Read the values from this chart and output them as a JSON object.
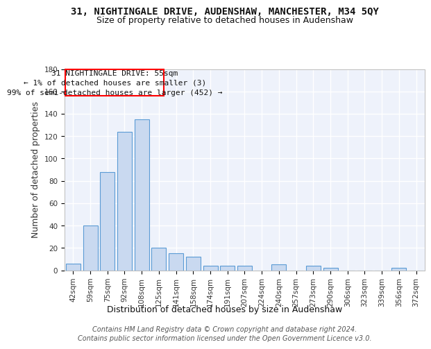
{
  "title_line1": "31, NIGHTINGALE DRIVE, AUDENSHAW, MANCHESTER, M34 5QY",
  "title_line2": "Size of property relative to detached houses in Audenshaw",
  "xlabel": "Distribution of detached houses by size in Audenshaw",
  "ylabel": "Number of detached properties",
  "categories": [
    "42sqm",
    "59sqm",
    "75sqm",
    "92sqm",
    "108sqm",
    "125sqm",
    "141sqm",
    "158sqm",
    "174sqm",
    "191sqm",
    "207sqm",
    "224sqm",
    "240sqm",
    "257sqm",
    "273sqm",
    "290sqm",
    "306sqm",
    "323sqm",
    "339sqm",
    "356sqm",
    "372sqm"
  ],
  "values": [
    6,
    40,
    88,
    124,
    135,
    20,
    15,
    12,
    4,
    4,
    4,
    0,
    5,
    0,
    4,
    2,
    0,
    0,
    0,
    2,
    0
  ],
  "bar_color": "#c9d9f0",
  "bar_edge_color": "#5b9bd5",
  "annotation_line1": "31 NIGHTINGALE DRIVE: 55sqm",
  "annotation_line2": "← 1% of detached houses are smaller (3)",
  "annotation_line3": "99% of semi-detached houses are larger (452) →",
  "annotation_box_color": "white",
  "annotation_box_edge_color": "red",
  "ylim": [
    0,
    180
  ],
  "yticks": [
    0,
    20,
    40,
    60,
    80,
    100,
    120,
    140,
    160,
    180
  ],
  "footer_line1": "Contains HM Land Registry data © Crown copyright and database right 2024.",
  "footer_line2": "Contains public sector information licensed under the Open Government Licence v3.0.",
  "bg_color": "#eef2fb",
  "grid_color": "#ffffff",
  "title_fontsize": 10,
  "subtitle_fontsize": 9,
  "axis_label_fontsize": 9,
  "tick_fontsize": 7.5,
  "annotation_fontsize": 8,
  "footer_fontsize": 7
}
